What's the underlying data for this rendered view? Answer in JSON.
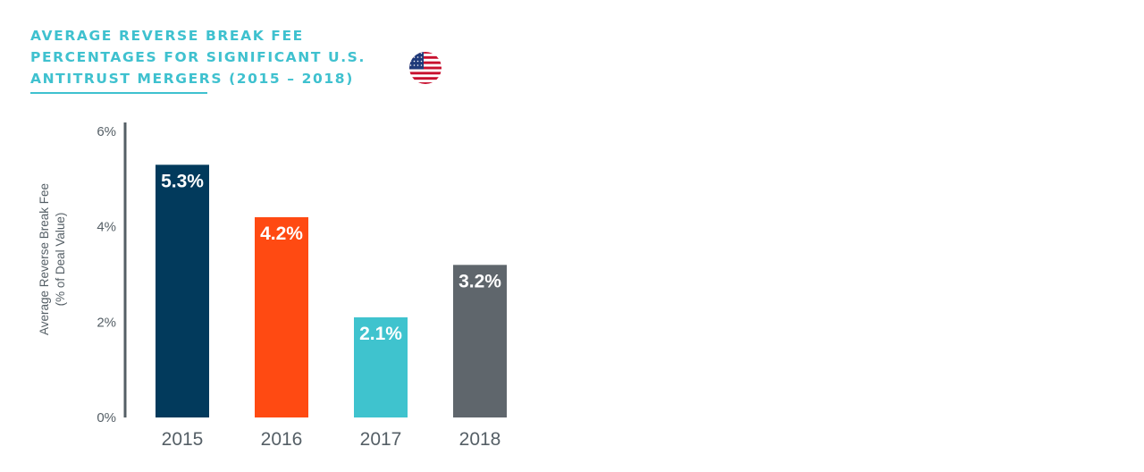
{
  "title": {
    "lines": [
      "AVERAGE REVERSE BREAK FEE",
      "PERCENTAGES FOR SIGNIFICANT U.S.",
      "ANTITRUST MERGERS (2015 – 2018)"
    ]
  },
  "flag": {
    "icon": "us-flag-icon",
    "colors": {
      "red": "#c8102e",
      "white": "#ffffff",
      "blue": "#1f3a7a"
    }
  },
  "chart_data": {
    "type": "bar",
    "title": "AVERAGE REVERSE BREAK FEE PERCENTAGES FOR SIGNIFICANT U.S. ANTITRUST MERGERS (2015 – 2018)",
    "categories": [
      "2015",
      "2016",
      "2017",
      "2018"
    ],
    "values": [
      5.3,
      4.2,
      2.1,
      3.2
    ],
    "value_labels": [
      "5.3%",
      "4.2%",
      "2.1%",
      "3.2%"
    ],
    "bar_colors": [
      "#023a5c",
      "#ff4a12",
      "#3fc3ce",
      "#5f666c"
    ],
    "ylabel_lines": [
      "Average Reverse Break Fee",
      "(% of Deal Value)"
    ],
    "xlabel": "",
    "ylim": [
      0,
      6
    ],
    "yticks": [
      {
        "value": 0,
        "label": "0%"
      },
      {
        "value": 2,
        "label": "2%"
      },
      {
        "value": 4,
        "label": "4%"
      },
      {
        "value": 6,
        "label": "6%"
      }
    ],
    "grid": false,
    "legend": "none",
    "axis_color": "#555f66"
  }
}
